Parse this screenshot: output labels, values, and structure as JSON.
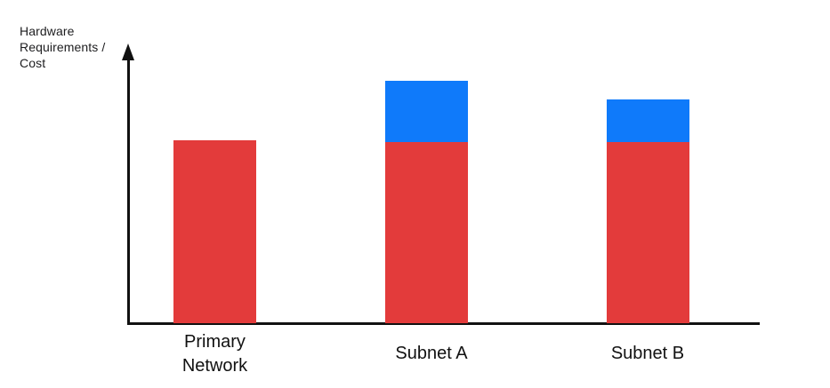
{
  "chart_data": {
    "type": "bar",
    "stacked": true,
    "title": "",
    "ylabel": "Hardware Requirements / Cost",
    "xlabel": "",
    "categories": [
      "Primary Network",
      "Subnet A",
      "Subnet B"
    ],
    "series": [
      {
        "name": "red-base-segment",
        "color": "#E33B3B",
        "values": [
          206,
          204,
          204
        ]
      },
      {
        "name": "blue-added-segment",
        "color": "#0F7AFA",
        "values": [
          0,
          69,
          48
        ]
      }
    ],
    "value_scale": "relative units (no numeric ticks shown)",
    "layout": {
      "gridlines": false,
      "legend": false,
      "y_axis_arrow": true,
      "axis_color": "#111111"
    }
  }
}
